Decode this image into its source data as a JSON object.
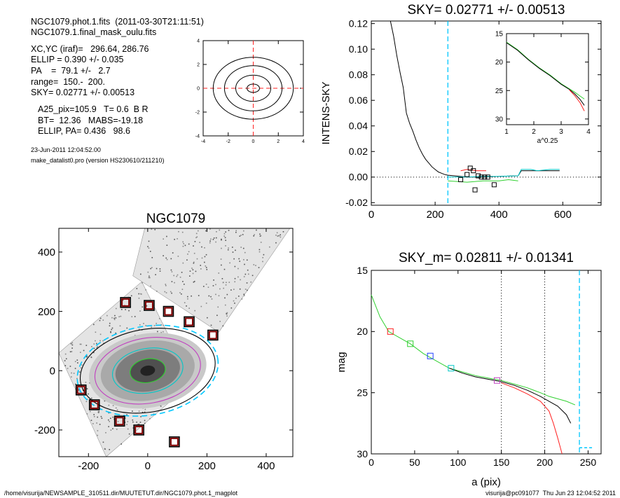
{
  "info": {
    "line1": "NGC1079.phot.1.fits  (2011-03-30T21:11:51)",
    "line2": "NGC1079.1.final_mask_oulu.fits",
    "xcyc": "XC,YC (iraf)=   296.64, 286.76",
    "ellip": "ELLIP = 0.390 +/- 0.035",
    "pa": "PA    =  79.1 +/-   2.7",
    "range": "range=  150.-  200.",
    "sky": "SKY= 0.02771 +/- 0.00513",
    "a25": "A25_pix=105.9   T= 0.6  B R",
    "bt": "BT=  12.36   MABS=-19.18",
    "ellip_pa": "ELLIP, PA= 0.436   98.6",
    "date": "23-Jun-2011 12:04:52.00",
    "program": "make_datalist0.pro (version HS230610/211210)"
  },
  "footer": {
    "path": "/home/visurija/NEWSAMPLE_310511.dir/MUUTETUT.dir/NGC1079.phot.1_magplot",
    "user": "visurija@pc091077  Thu Jun 23 12:04:52 2011"
  },
  "colors": {
    "sky_line": "#00c8ff",
    "black": "#000000",
    "red": "#ff2020",
    "green": "#30d030",
    "blue": "#2040ff",
    "cyan": "#00c8c8",
    "magenta": "#c040c0",
    "darkred": "#800000"
  },
  "chart_data": [
    {
      "type": "line",
      "id": "contour-plot",
      "title": "",
      "xlim": [
        -4,
        4
      ],
      "ylim": [
        -4,
        4
      ],
      "x_ticks": [
        -4,
        -2,
        0,
        2,
        4
      ],
      "y_ticks": [
        -4,
        -2,
        0,
        2,
        4
      ],
      "contours": [
        {
          "rx": 0.5,
          "ry": 0.35
        },
        {
          "rx": 1.4,
          "ry": 1.1
        },
        {
          "rx": 2.3,
          "ry": 1.9
        },
        {
          "rx": 3.2,
          "ry": 2.6
        }
      ]
    },
    {
      "type": "line",
      "id": "sky-profile",
      "title": "SKY= 0.02771 +/- 0.00513",
      "ylabel": "INTENS-SKY",
      "xlabel": "",
      "xlim": [
        0,
        720
      ],
      "ylim": [
        -0.022,
        0.122
      ],
      "x_ticks": [
        0,
        200,
        400,
        600
      ],
      "y_ticks": [
        "0.12",
        "0.10",
        "0.08",
        "0.06",
        "0.04",
        "0.02",
        "0.00",
        "-0.02"
      ],
      "sky_x": 240,
      "series": [
        {
          "color": "black",
          "x": [
            60,
            70,
            80,
            90,
            100,
            110,
            120,
            130,
            140,
            150,
            160,
            170,
            180,
            190,
            200,
            210,
            220,
            230,
            240,
            260,
            300,
            350,
            400,
            430,
            460,
            470,
            520,
            560,
            590
          ],
          "y": [
            0.122,
            0.11,
            0.095,
            0.082,
            0.07,
            0.05,
            0.042,
            0.036,
            0.029,
            0.023,
            0.018,
            0.014,
            0.011,
            0.008,
            0.006,
            0.004,
            0.003,
            0.002,
            0.0015,
            0.001,
            0.0,
            0.0,
            0.0005,
            0.0008,
            0.001,
            0.005,
            0.005,
            0.005,
            0.005
          ]
        },
        {
          "color": "cyan",
          "x": [
            240,
            300,
            350,
            400,
            430,
            460,
            470,
            500,
            520,
            560,
            590
          ],
          "y": [
            0.0,
            0.0,
            0.0005,
            0.0005,
            0.0008,
            0.001,
            0.006,
            0.006,
            0.005,
            0.006,
            0.006
          ]
        },
        {
          "color": "green",
          "x": [
            240,
            300,
            350,
            400,
            430,
            460
          ],
          "y": [
            -0.003,
            -0.004,
            -0.003,
            -0.003,
            -0.002,
            -0.003
          ]
        },
        {
          "color": "red",
          "x": [
            280,
            300,
            330,
            360
          ],
          "y": [
            0.005,
            0.006,
            0.005,
            0.005
          ]
        }
      ],
      "squares": [
        [
          280,
          -0.002
        ],
        [
          300,
          0.002
        ],
        [
          310,
          0.007
        ],
        [
          320,
          0.005
        ],
        [
          325,
          -0.01
        ],
        [
          335,
          0.001
        ],
        [
          345,
          0.0
        ],
        [
          355,
          0.0
        ],
        [
          365,
          0.0
        ],
        [
          385,
          -0.006
        ]
      ],
      "inset": {
        "xlabel": "a^0.25",
        "xlim": [
          1,
          4
        ],
        "ylim": [
          15,
          31
        ],
        "x_ticks": [
          1,
          2,
          3,
          4
        ],
        "y_ticks": [
          15,
          20,
          25,
          30
        ],
        "series": [
          {
            "color": "green",
            "x": [
              1.0,
              1.4,
              1.8,
              2.2,
              2.6,
              3.0,
              3.3,
              3.5,
              3.7,
              3.85
            ],
            "y": [
              16.5,
              17.8,
              19.5,
              21.0,
              22.3,
              23.8,
              24.7,
              25.3,
              26.0,
              26.5
            ]
          },
          {
            "color": "black",
            "x": [
              1.0,
              1.4,
              1.8,
              2.2,
              2.6,
              3.0,
              3.3,
              3.5,
              3.7,
              3.85
            ],
            "y": [
              16.6,
              17.9,
              19.6,
              21.1,
              22.4,
              23.9,
              24.8,
              25.6,
              26.6,
              27.6
            ]
          },
          {
            "color": "red",
            "x": [
              3.3,
              3.5,
              3.7,
              3.85
            ],
            "y": [
              24.9,
              25.9,
              27.2,
              28.6
            ]
          }
        ]
      }
    },
    {
      "type": "scatter",
      "id": "galaxy-image",
      "title": "NGC1079",
      "xlim": [
        -300,
        490
      ],
      "ylim": [
        -290,
        480
      ],
      "x_ticks": [
        -200,
        0,
        200,
        400
      ],
      "y_ticks": [
        -200,
        0,
        200,
        400
      ],
      "ellipses": [
        {
          "rx": 240,
          "ry": 150,
          "color": "sky_line",
          "dash": true
        },
        {
          "rx": 230,
          "ry": 140,
          "color": "black"
        },
        {
          "rx": 180,
          "ry": 110,
          "color": "magenta"
        },
        {
          "rx": 120,
          "ry": 75,
          "color": "cyan"
        },
        {
          "rx": 60,
          "ry": 40,
          "color": "green"
        }
      ],
      "squares": [
        [
          -75,
          230
        ],
        [
          5,
          220
        ],
        [
          70,
          200
        ],
        [
          140,
          165
        ],
        [
          220,
          120
        ],
        [
          -225,
          -65
        ],
        [
          -180,
          -115
        ],
        [
          -95,
          -170
        ],
        [
          -30,
          -200
        ],
        [
          90,
          -240
        ]
      ]
    },
    {
      "type": "line",
      "id": "mag-profile",
      "title": "SKY_m=  0.02811 +/- 0.01341",
      "ylabel": "mag",
      "xlabel": "a (pix)",
      "xlim": [
        0,
        265
      ],
      "ylim": [
        30,
        15
      ],
      "x_ticks": [
        0,
        50,
        100,
        150,
        200,
        250
      ],
      "y_ticks": [
        15,
        20,
        25,
        30
      ],
      "vlines": [
        150,
        200
      ],
      "sky_x": 240,
      "series": [
        {
          "color": "green",
          "x": [
            0,
            10,
            20,
            30,
            45,
            60,
            75,
            90,
            105,
            120,
            135,
            150,
            165,
            180,
            195,
            205,
            215,
            225,
            235
          ],
          "y": [
            17.0,
            18.8,
            20.0,
            20.4,
            21.0,
            21.8,
            22.4,
            23.0,
            23.3,
            23.6,
            23.8,
            24.0,
            24.3,
            24.6,
            25.0,
            25.3,
            25.5,
            25.7,
            26.0
          ]
        },
        {
          "color": "black",
          "x": [
            90,
            105,
            120,
            135,
            150,
            165,
            180,
            195,
            205,
            215,
            225,
            230
          ],
          "y": [
            23.0,
            23.4,
            23.7,
            23.9,
            24.1,
            24.4,
            24.8,
            25.3,
            25.7,
            26.1,
            26.8,
            27.5
          ]
        },
        {
          "color": "red",
          "x": [
            150,
            165,
            180,
            195,
            205,
            210,
            215,
            220
          ],
          "y": [
            24.2,
            24.6,
            25.1,
            25.7,
            26.5,
            27.5,
            28.7,
            30.0
          ]
        }
      ],
      "squares": [
        {
          "x": 22,
          "y": 20.0,
          "color": "red"
        },
        {
          "x": 45,
          "y": 21.0,
          "color": "green"
        },
        {
          "x": 68,
          "y": 22.0,
          "color": "blue"
        },
        {
          "x": 92,
          "y": 23.0,
          "color": "cyan"
        },
        {
          "x": 145,
          "y": 24.0,
          "color": "magenta"
        }
      ],
      "sky_segment": {
        "x": [
          240,
          255
        ],
        "y": 29.5
      }
    }
  ]
}
